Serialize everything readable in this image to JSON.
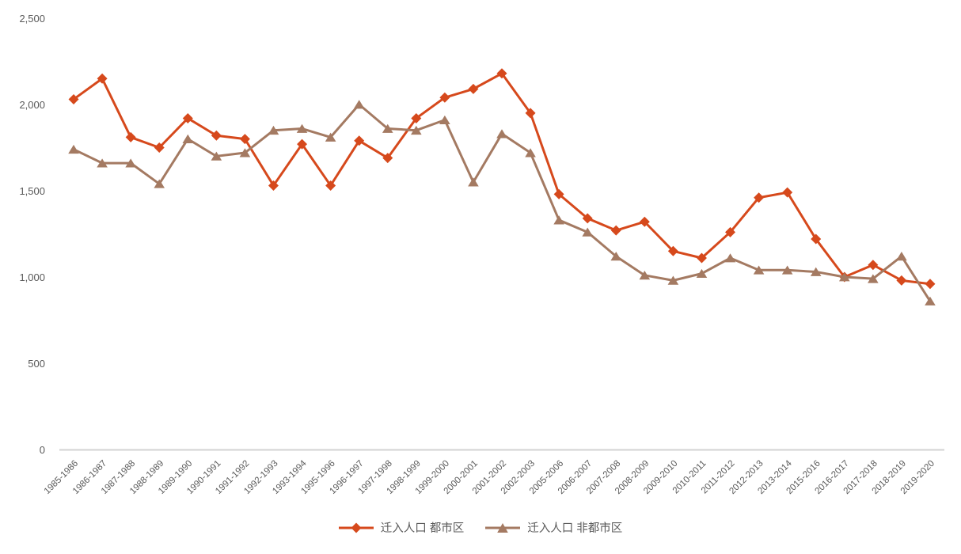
{
  "chart_data": {
    "type": "line",
    "title": "",
    "categories": [
      "1985-1986",
      "1986-1987",
      "1987-1988",
      "1988-1989",
      "1989-1990",
      "1990-1991",
      "1991-1992",
      "1992-1993",
      "1993-1994",
      "1995-1996",
      "1996-1997",
      "1997-1998",
      "1998-1999",
      "1999-2000",
      "2000-2001",
      "2001-2002",
      "2002-2003",
      "2005-2006",
      "2006-2007",
      "2007-2008",
      "2008-2009",
      "2009-2010",
      "2010-2011",
      "2011-2012",
      "2012-2013",
      "2013-2014",
      "2015-2016",
      "2016-2017",
      "2017-2018",
      "2018-2019",
      "2019-2020"
    ],
    "series": [
      {
        "name": "迁入人口 都市区",
        "marker": "diamond",
        "color": "#d6491c",
        "values": [
          2030,
          2150,
          1810,
          1750,
          1920,
          1820,
          1800,
          1530,
          1770,
          1530,
          1790,
          1690,
          1920,
          2040,
          2090,
          2180,
          1950,
          1480,
          1340,
          1270,
          1320,
          1150,
          1110,
          1260,
          1460,
          1490,
          1220,
          1000,
          1070,
          980,
          960
        ]
      },
      {
        "name": "迁入人口 非都市区",
        "marker": "triangle",
        "color": "#a47a62",
        "values": [
          1740,
          1660,
          1660,
          1540,
          1800,
          1700,
          1720,
          1850,
          1860,
          1810,
          2000,
          1860,
          1850,
          1910,
          1550,
          1830,
          1720,
          1330,
          1260,
          1120,
          1010,
          980,
          1020,
          1110,
          1040,
          1040,
          1030,
          1000,
          990,
          1120,
          860
        ]
      }
    ],
    "xlabel": "",
    "ylabel": "",
    "ylim": [
      0,
      2500
    ],
    "y_ticks": [
      0,
      500,
      1000,
      1500,
      2000,
      2500
    ],
    "y_tick_labels": [
      "0",
      "500",
      "1,000",
      "1,500",
      "2,000",
      "2,500"
    ],
    "grid": false,
    "legend_position": "bottom",
    "x_tick_rotation": 45
  },
  "colors": {
    "background": "#ffffff",
    "text": "#595959",
    "axis_line": "#d9d9d9",
    "series_metro": "#d6491c",
    "series_nonmetro": "#a47a62"
  }
}
